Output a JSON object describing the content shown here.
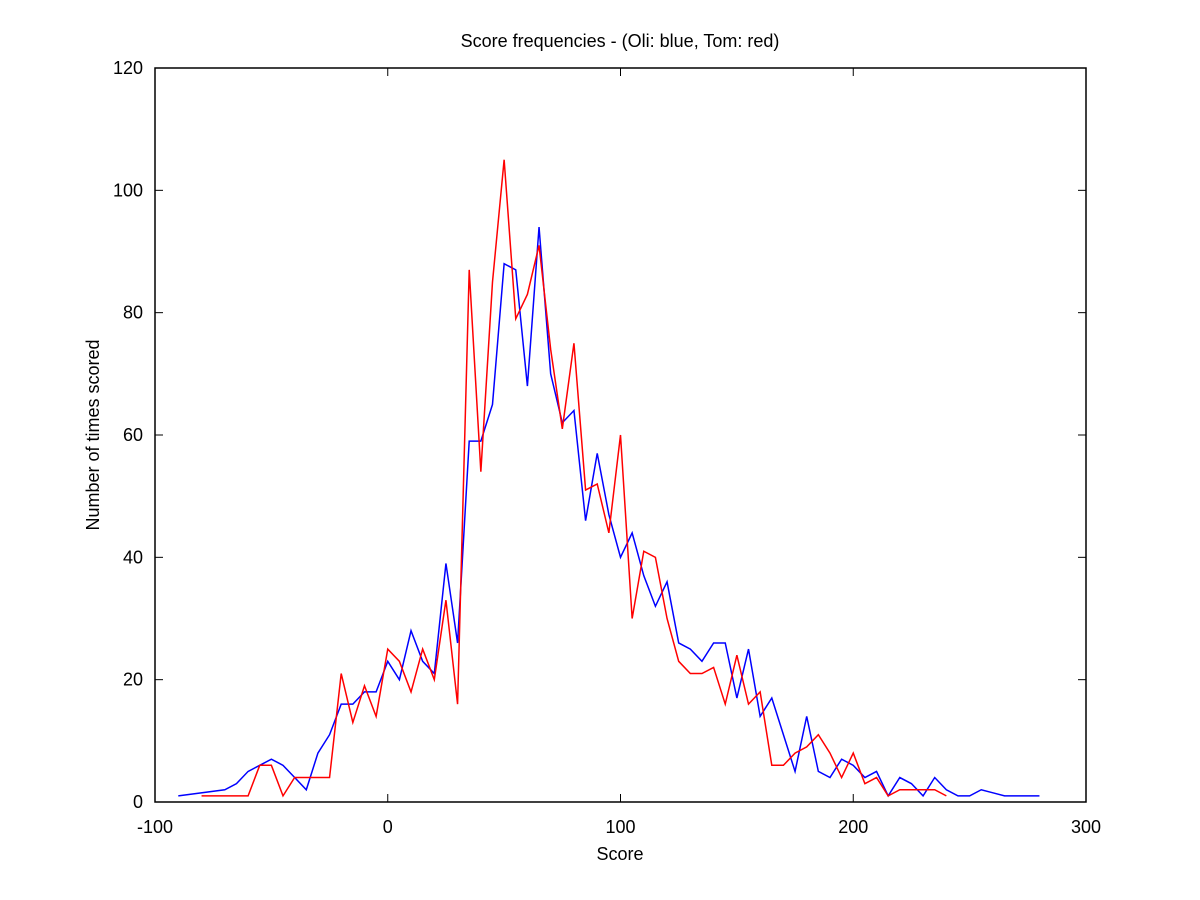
{
  "chart_data": {
    "type": "line",
    "title": "Score frequencies - (Oli: blue, Tom: red)",
    "xlabel": "Score",
    "ylabel": "Number of times scored",
    "xlim": [
      -100,
      300
    ],
    "ylim": [
      0,
      120
    ],
    "xticks": [
      -100,
      0,
      100,
      200,
      300
    ],
    "yticks": [
      0,
      20,
      40,
      60,
      80,
      100,
      120
    ],
    "grid": false,
    "series": [
      {
        "color": "#0000ff",
        "x": [
          -90,
          -70,
          -65,
          -60,
          -55,
          -50,
          -45,
          -40,
          -35,
          -30,
          -25,
          -20,
          -15,
          -10,
          -5,
          0,
          5,
          10,
          15,
          20,
          25,
          30,
          35,
          40,
          45,
          50,
          55,
          60,
          65,
          70,
          75,
          80,
          85,
          90,
          95,
          100,
          105,
          110,
          115,
          120,
          125,
          130,
          135,
          140,
          145,
          150,
          155,
          160,
          165,
          170,
          175,
          180,
          185,
          190,
          195,
          200,
          205,
          210,
          215,
          220,
          225,
          230,
          235,
          240,
          245,
          250,
          255,
          260,
          265,
          270,
          275,
          280
        ],
        "y": [
          1,
          2,
          3,
          5,
          6,
          7,
          6,
          4,
          2,
          8,
          11,
          16,
          16,
          18,
          18,
          23,
          20,
          28,
          23,
          21,
          39,
          26,
          59,
          59,
          65,
          88,
          87,
          68,
          94,
          70,
          62,
          64,
          46,
          57,
          47,
          40,
          44,
          37,
          32,
          36,
          26,
          25,
          23,
          26,
          26,
          17,
          25,
          14,
          17,
          11,
          5,
          14,
          5,
          4,
          7,
          6,
          4,
          5,
          1,
          4,
          3,
          1,
          4,
          2,
          1,
          1,
          2,
          1.5,
          1,
          1,
          1,
          1
        ]
      },
      {
        "color": "#ff0000",
        "x": [
          -80,
          -75,
          -70,
          -65,
          -60,
          -55,
          -50,
          -45,
          -40,
          -35,
          -30,
          -25,
          -20,
          -15,
          -10,
          -5,
          0,
          5,
          10,
          15,
          20,
          25,
          30,
          35,
          40,
          45,
          50,
          55,
          60,
          65,
          70,
          75,
          80,
          85,
          90,
          95,
          100,
          105,
          110,
          115,
          120,
          125,
          130,
          135,
          140,
          145,
          150,
          155,
          160,
          165,
          170,
          175,
          180,
          185,
          190,
          195,
          200,
          205,
          210,
          215,
          220,
          225,
          230,
          235,
          240
        ],
        "y": [
          1,
          1,
          1,
          1,
          1,
          6,
          6,
          1,
          4,
          4,
          4,
          4,
          21,
          13,
          19,
          14,
          25,
          23,
          18,
          25,
          20,
          33,
          16,
          87,
          54,
          85,
          105,
          79,
          83,
          91,
          74,
          61,
          75,
          51,
          52,
          44,
          60,
          30,
          41,
          40,
          30,
          23,
          21,
          21,
          22,
          16,
          24,
          16,
          18,
          6,
          6,
          8,
          9,
          11,
          8,
          4,
          8,
          3,
          4,
          1,
          2,
          2,
          2,
          2,
          1
        ]
      }
    ]
  }
}
